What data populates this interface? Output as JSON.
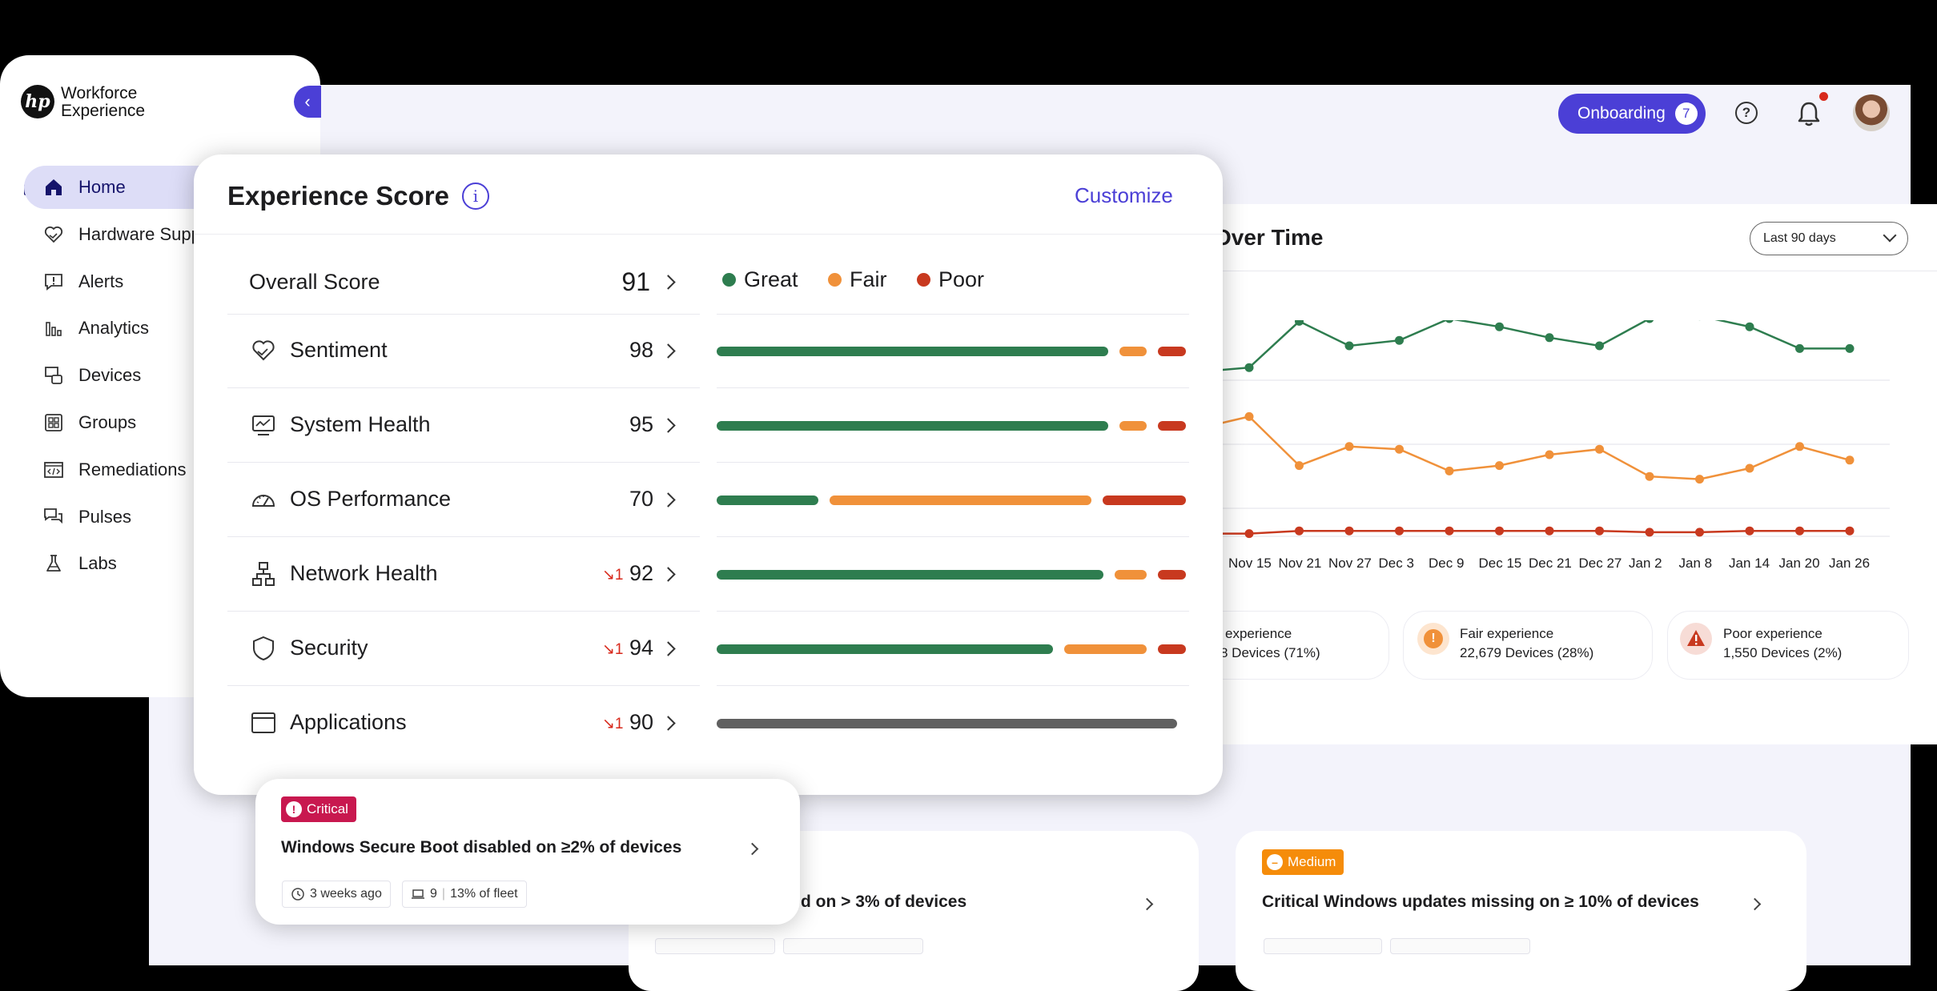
{
  "topbar": {
    "onboarding_label": "Onboarding",
    "onboarding_count": "7",
    "help_glyph": "?"
  },
  "sidebar": {
    "logo_mark": "hp",
    "logo_text": "Workforce Experience",
    "items": [
      {
        "label": "Home",
        "icon": "home-icon",
        "active": true
      },
      {
        "label": "Hardware Supp",
        "icon": "handshake-heart-icon"
      },
      {
        "label": "Alerts",
        "icon": "alert-bubble-icon"
      },
      {
        "label": "Analytics",
        "icon": "bar-chart-icon"
      },
      {
        "label": "Devices",
        "icon": "devices-icon"
      },
      {
        "label": "Groups",
        "icon": "grid-icon"
      },
      {
        "label": "Remediations",
        "icon": "code-window-icon"
      },
      {
        "label": "Pulses",
        "icon": "chat-bubbles-icon"
      },
      {
        "label": "Labs",
        "icon": "flask-icon"
      }
    ]
  },
  "experience_score": {
    "title": "Experience Score",
    "info_glyph": "i",
    "customize_label": "Customize",
    "legend": [
      {
        "label": "Great",
        "color": "#2e7d4f"
      },
      {
        "label": "Fair",
        "color": "#f0913a"
      },
      {
        "label": "Poor",
        "color": "#c8391f"
      }
    ],
    "overall": {
      "label": "Overall Score",
      "score": "91"
    },
    "rows": [
      {
        "label": "Sentiment",
        "score": "98",
        "delta": "",
        "icon": "heart-hand-icon",
        "great": 0.85,
        "fair": 0.06,
        "poor": 0.06
      },
      {
        "label": "System Health",
        "score": "95",
        "delta": "",
        "icon": "monitor-pulse-icon",
        "great": 0.85,
        "fair": 0.06,
        "poor": 0.06
      },
      {
        "label": "OS Performance",
        "score": "70",
        "delta": "",
        "icon": "gauge-icon",
        "great": 0.22,
        "fair": 0.57,
        "poor": 0.18
      },
      {
        "label": "Network Health",
        "score": "92",
        "delta": "↘1",
        "icon": "network-icon",
        "great": 0.84,
        "fair": 0.07,
        "poor": 0.06
      },
      {
        "label": "Security",
        "score": "94",
        "delta": "↘1",
        "icon": "shield-icon",
        "great": 0.73,
        "fair": 0.18,
        "poor": 0.06
      },
      {
        "label": "Applications",
        "score": "90",
        "delta": "↘1",
        "icon": "app-window-icon",
        "great": 0,
        "fair": 0,
        "poor": 0,
        "neutral": 1
      }
    ]
  },
  "over_time": {
    "title": "Over Time",
    "range": "Last 90 days",
    "experience": [
      {
        "label": "experience",
        "devices": "8 Devices (71%)",
        "icon": "great-icon"
      },
      {
        "label": "Fair experience",
        "devices": "22,679 Devices (28%)",
        "icon": "fair-warning-icon",
        "color": "#f0913a"
      },
      {
        "label": "Poor experience",
        "devices": "1,550 Devices (2%)",
        "icon": "poor-warning-icon",
        "color": "#c8391f"
      }
    ]
  },
  "chart_data": {
    "type": "line",
    "x": [
      "Nov 15",
      "Nov 21",
      "Nov 27",
      "Dec 3",
      "Dec 9",
      "Dec 15",
      "Dec 21",
      "Dec 27",
      "Jan 2",
      "Jan 8",
      "Jan 14",
      "Jan 20",
      "Jan 26"
    ],
    "series": [
      {
        "color": "#2e7d4f",
        "values": [
          0.62,
          0.79,
          0.7,
          0.72,
          0.8,
          0.77,
          0.73,
          0.7,
          0.8,
          0.81,
          0.77,
          0.69,
          0.69
        ]
      },
      {
        "color": "#f0913a",
        "values": [
          0.44,
          0.26,
          0.33,
          0.32,
          0.24,
          0.26,
          0.3,
          0.32,
          0.22,
          0.21,
          0.25,
          0.33,
          0.28
        ]
      },
      {
        "color": "#c8391f",
        "values": [
          0.01,
          0.02,
          0.02,
          0.02,
          0.02,
          0.02,
          0.02,
          0.02,
          0.015,
          0.015,
          0.02,
          0.02,
          0.02
        ]
      }
    ],
    "grid": true
  },
  "alerts": [
    {
      "severity": "Critical",
      "color": "#c8184f",
      "title": "Windows Secure Boot disabled on ≥2% of devices",
      "time": "3 weeks ago",
      "devices": "9",
      "fleet": "13% of fleet"
    },
    {
      "title_partial": "d on > 3% of devices"
    },
    {
      "severity": "Medium",
      "color": "#f58c0a",
      "title": "Critical Windows updates missing on ≥ 10% of devices"
    }
  ]
}
